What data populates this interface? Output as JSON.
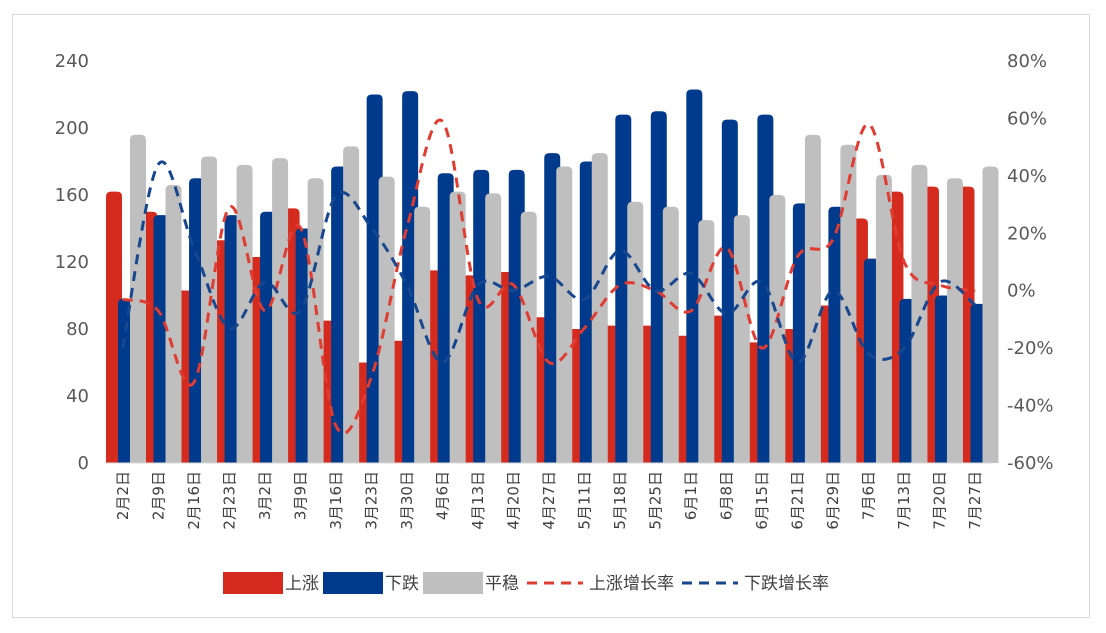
{
  "chart_data": {
    "type": "bar",
    "categories": [
      "2月2日",
      "2月9日",
      "2月16日",
      "2月23日",
      "3月2日",
      "3月9日",
      "3月16日",
      "3月23日",
      "3月30日",
      "4月6日",
      "4月13日",
      "4月20日",
      "4月27日",
      "5月11日",
      "5月18日",
      "5月25日",
      "6月1日",
      "6月8日",
      "6月15日",
      "6月21日",
      "6月29日",
      "7月6日",
      "7月13日",
      "7月20日",
      "7月27日"
    ],
    "series": [
      {
        "name": "上涨",
        "kind": "bar",
        "axis": "left",
        "color": "#d52b1e",
        "values": [
          162,
          150,
          103,
          133,
          123,
          152,
          85,
          60,
          73,
          115,
          112,
          114,
          87,
          80,
          82,
          82,
          76,
          88,
          72,
          80,
          94,
          146,
          162,
          165,
          165
        ]
      },
      {
        "name": "下跌",
        "kind": "bar",
        "axis": "left",
        "color": "#003a8c",
        "values": [
          98,
          148,
          170,
          148,
          150,
          140,
          177,
          220,
          222,
          173,
          175,
          175,
          185,
          180,
          208,
          210,
          223,
          205,
          208,
          155,
          153,
          122,
          98,
          100,
          95
        ]
      },
      {
        "name": "平稳",
        "kind": "bar",
        "axis": "left",
        "color": "#bfbfbf",
        "values": [
          196,
          166,
          183,
          178,
          182,
          170,
          189,
          171,
          153,
          162,
          161,
          150,
          177,
          185,
          156,
          153,
          145,
          148,
          160,
          196,
          190,
          172,
          178,
          170,
          177
        ]
      },
      {
        "name": "上涨增长率",
        "kind": "line",
        "axis": "right",
        "color": "#e03c31",
        "values": [
          -3,
          -7,
          -32,
          29,
          -7,
          22,
          -47,
          -30,
          22,
          59,
          -3,
          2,
          -25,
          -13,
          2,
          0,
          -7,
          15,
          -20,
          12,
          18,
          58,
          10,
          2,
          0
        ]
      },
      {
        "name": "下跌增长率",
        "kind": "line",
        "axis": "right",
        "color": "#17478f",
        "values": [
          -20,
          44,
          15,
          -13,
          3,
          -7,
          33,
          22,
          2,
          -25,
          2,
          0,
          5,
          -3,
          14,
          0,
          6,
          -8,
          3,
          -25,
          0,
          -22,
          -20,
          3,
          -5
        ]
      }
    ],
    "y_left": {
      "min": 0,
      "max": 240,
      "step": 40,
      "ticks": [
        "0",
        "40",
        "80",
        "120",
        "160",
        "200",
        "240"
      ]
    },
    "y_right": {
      "min": -60,
      "max": 80,
      "step": 20,
      "ticks": [
        "-60%",
        "-40%",
        "-20%",
        "0%",
        "20%",
        "40%",
        "60%",
        "80%"
      ]
    },
    "grid": false,
    "legend_position": "bottom",
    "title": "",
    "xlabel": "",
    "ylabel": ""
  }
}
